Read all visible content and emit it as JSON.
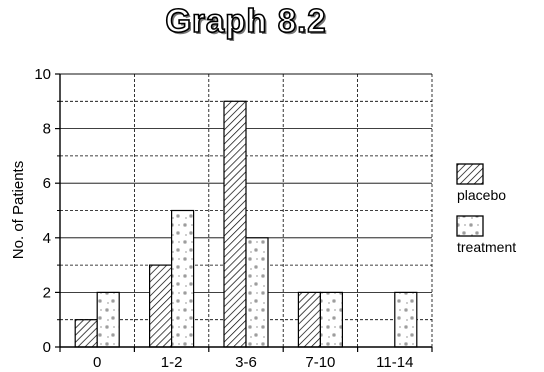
{
  "chart_data": {
    "type": "bar",
    "title": "Graph 8.2",
    "xlabel": "",
    "ylabel": "No. of Patients",
    "ylim": [
      0,
      10
    ],
    "yticks": [
      "0",
      "2",
      "4",
      "6",
      "8",
      "10"
    ],
    "categories": [
      "0",
      "1-2",
      "3-6",
      "7-10",
      "11-14"
    ],
    "series": [
      {
        "name": "placebo",
        "values": [
          1,
          3,
          9,
          2,
          0
        ],
        "pattern": "diagonal-hatch"
      },
      {
        "name": "treatment",
        "values": [
          2,
          5,
          4,
          2,
          2
        ],
        "pattern": "sparse-dots"
      }
    ],
    "grid": true,
    "legend_position": "right"
  }
}
